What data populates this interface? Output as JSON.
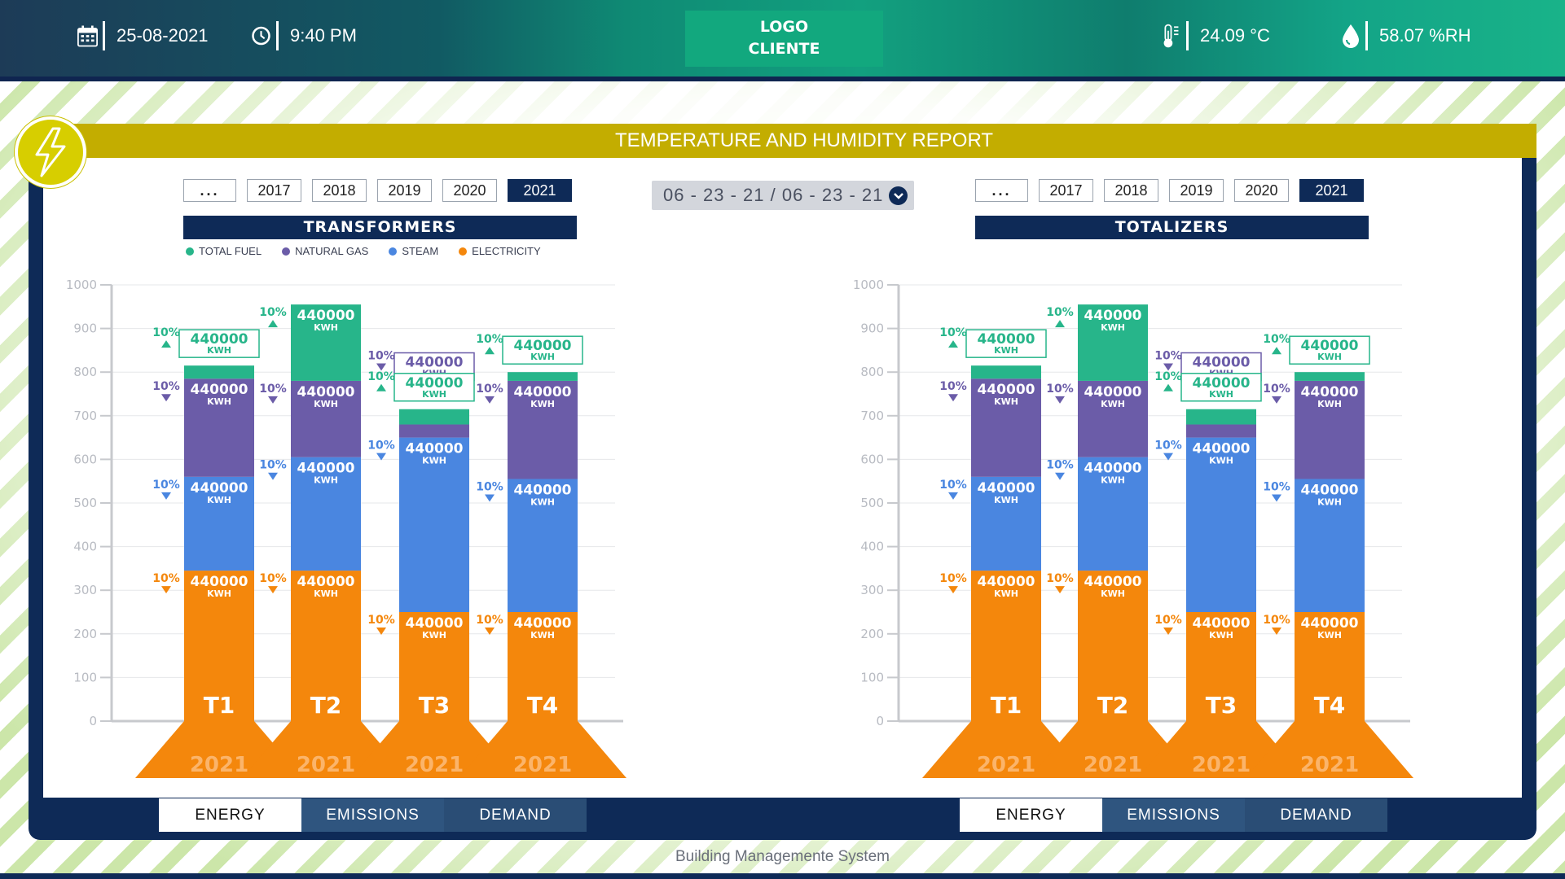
{
  "header": {
    "date": "25-08-2021",
    "time": "9:40 PM",
    "logo_line1": "LOGO",
    "logo_line2": "CLIENTE",
    "temperature": "24.09 °C",
    "humidity": "58.07 %RH",
    "icons": [
      "calendar-icon",
      "clock-icon",
      "thermometer-icon",
      "droplet-icon"
    ]
  },
  "report_title": "TEMPERATURE AND HUMIDITY REPORT",
  "date_range": "06 - 23 - 21 / 06 - 23 - 21",
  "years": [
    "...",
    "2017",
    "2018",
    "2019",
    "2020",
    "2021"
  ],
  "selected_year": "2021",
  "left_panel": {
    "title": "TRANSFORMERS",
    "tabs": [
      "ENERGY",
      "EMISSIONS",
      "DEMAND"
    ],
    "active_tab": "ENERGY"
  },
  "right_panel": {
    "title": "TOTALIZERS",
    "tabs": [
      "ENERGY",
      "EMISSIONS",
      "DEMAND"
    ],
    "active_tab": "ENERGY"
  },
  "legend": [
    {
      "name": "TOTAL FUEL",
      "color": "#27b58a"
    },
    {
      "name": "NATURAL GAS",
      "color": "#6b5ca8"
    },
    {
      "name": "STEAM",
      "color": "#4a86e0"
    },
    {
      "name": "ELECTRICITY",
      "color": "#f4870c"
    }
  ],
  "footer": "Building Managemente System",
  "chart_data": [
    {
      "type": "bar",
      "stacked": true,
      "name": "TRANSFORMERS",
      "categories": [
        "T1",
        "T2",
        "T3",
        "T4"
      ],
      "category_year": "2021",
      "ylim": [
        0,
        1000
      ],
      "yticks": [
        0,
        100,
        200,
        300,
        400,
        500,
        600,
        700,
        800,
        900,
        1000
      ],
      "series": [
        {
          "name": "ELECTRICITY",
          "color": "#f4870c",
          "values": [
            345,
            345,
            250,
            250
          ]
        },
        {
          "name": "STEAM",
          "color": "#4a86e0",
          "values": [
            215,
            260,
            400,
            305
          ]
        },
        {
          "name": "NATURAL GAS",
          "color": "#6b5ca8",
          "values": [
            225,
            175,
            30,
            225
          ]
        },
        {
          "name": "TOTAL FUEL",
          "color": "#27b58a",
          "values": [
            30,
            175,
            35,
            20
          ]
        }
      ],
      "data_label": {
        "value": "440000",
        "unit": "KWH",
        "change": "10%"
      }
    },
    {
      "type": "bar",
      "stacked": true,
      "name": "TOTALIZERS",
      "categories": [
        "T1",
        "T2",
        "T3",
        "T4"
      ],
      "category_year": "2021",
      "ylim": [
        0,
        1000
      ],
      "yticks": [
        0,
        100,
        200,
        300,
        400,
        500,
        600,
        700,
        800,
        900,
        1000
      ],
      "series": [
        {
          "name": "ELECTRICITY",
          "color": "#f4870c",
          "values": [
            345,
            345,
            250,
            250
          ]
        },
        {
          "name": "STEAM",
          "color": "#4a86e0",
          "values": [
            215,
            260,
            400,
            305
          ]
        },
        {
          "name": "NATURAL GAS",
          "color": "#6b5ca8",
          "values": [
            225,
            175,
            30,
            225
          ]
        },
        {
          "name": "TOTAL FUEL",
          "color": "#27b58a",
          "values": [
            30,
            175,
            35,
            20
          ]
        }
      ],
      "data_label": {
        "value": "440000",
        "unit": "KWH",
        "change": "10%"
      }
    }
  ]
}
